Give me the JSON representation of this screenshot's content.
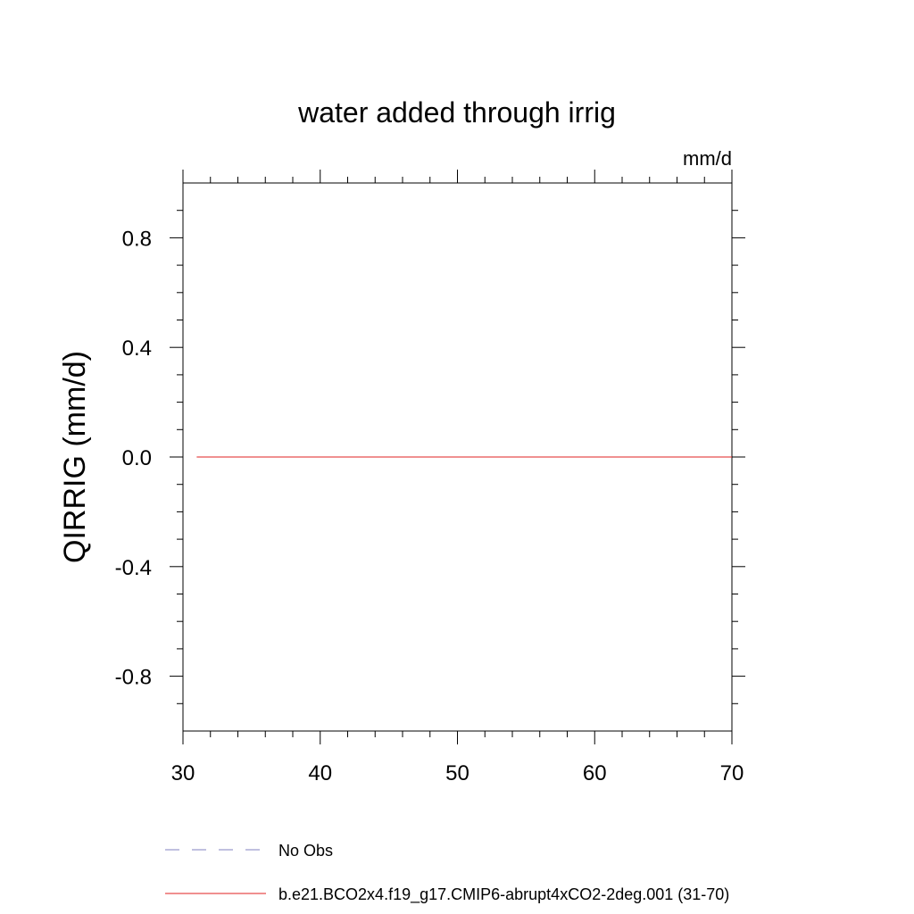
{
  "chart_data": {
    "type": "line",
    "title": "water added through irrig",
    "units_label": "mm/d",
    "ylabel": "QIRRIG  (mm/d)",
    "xlabel": "",
    "xlim": [
      30,
      70
    ],
    "ylim": [
      -1.0,
      1.0
    ],
    "x_ticks": [
      30,
      40,
      50,
      60,
      70
    ],
    "x_tick_labels": [
      "30",
      "40",
      "50",
      "60",
      "70"
    ],
    "x_minor_step": 2,
    "y_ticks": [
      0.8,
      0.4,
      0.0,
      -0.4,
      -0.8
    ],
    "y_tick_labels": [
      "0.8",
      "0.4",
      "0.0",
      "-0.4",
      "-0.8"
    ],
    "y_minor_step": 0.1,
    "grid": false,
    "legend_position": "bottom",
    "series": [
      {
        "name": "No Obs",
        "color": "#8080c0",
        "dash": "dashed",
        "x": [],
        "values": []
      },
      {
        "name": "b.e21.BCO2x4.f19_g17.CMIP6-abrupt4xCO2-2deg.001 (31-70)",
        "color": "#e02020",
        "dash": "solid",
        "x": [
          31,
          32,
          33,
          34,
          35,
          36,
          37,
          38,
          39,
          40,
          41,
          42,
          43,
          44,
          45,
          46,
          47,
          48,
          49,
          50,
          51,
          52,
          53,
          54,
          55,
          56,
          57,
          58,
          59,
          60,
          61,
          62,
          63,
          64,
          65,
          66,
          67,
          68,
          69,
          70
        ],
        "values": [
          0,
          0,
          0,
          0,
          0,
          0,
          0,
          0,
          0,
          0,
          0,
          0,
          0,
          0,
          0,
          0,
          0,
          0,
          0,
          0,
          0,
          0,
          0,
          0,
          0,
          0,
          0,
          0,
          0,
          0,
          0,
          0,
          0,
          0,
          0,
          0,
          0,
          0,
          0,
          0
        ]
      }
    ]
  }
}
